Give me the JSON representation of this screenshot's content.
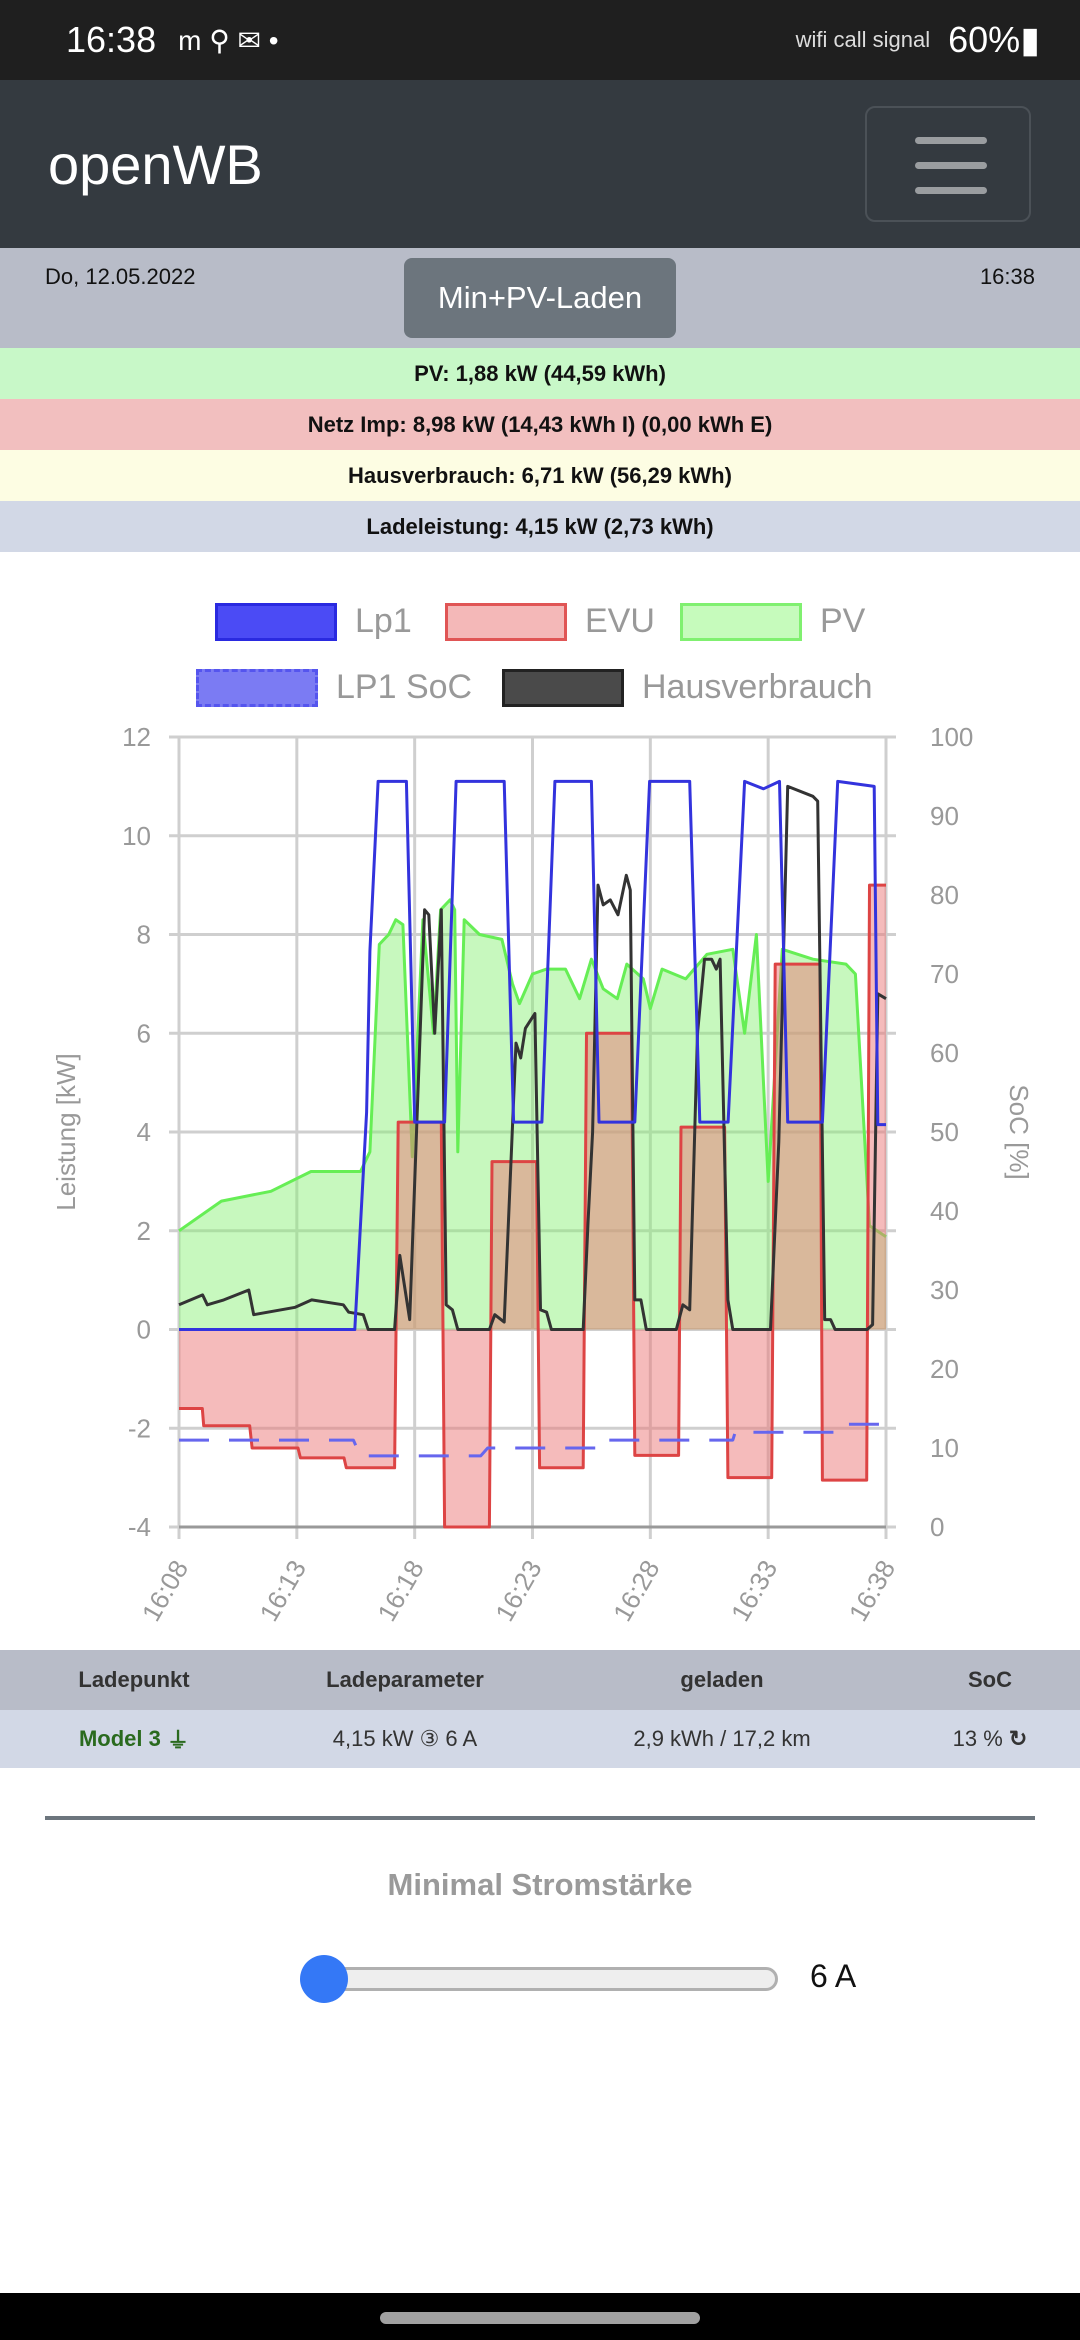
{
  "statusbar": {
    "time": "16:38",
    "left_icons": "m ⚲ ✉ •",
    "right_icons": "wifi call signal",
    "battery": "60%"
  },
  "navbar": {
    "brand": "openWB",
    "menu_icon": "hamburger-icon"
  },
  "daterow": {
    "date": "Do, 12.05.2022",
    "clock": "16:38",
    "mode_button": "Min+PV-Laden"
  },
  "info": {
    "pv": "PV: 1,88 kW (44,59 kWh)",
    "netz": "Netz Imp: 8,98 kW (14,43 kWh I) (0,00 kWh E)",
    "haus": "Hausverbrauch: 6,71 kW (56,29 kWh)",
    "lade": "Ladeleistung: 4,15 kW (2,73 kWh)"
  },
  "colors": {
    "pv_bg": "#c8f8c8",
    "netz_bg": "#f2bfbf",
    "haus_bg": "#fdfde3",
    "lade_bg": "#d2d8e6",
    "accent": "#3478f6"
  },
  "chart_data": {
    "type": "line",
    "legend": [
      "Lp1",
      "EVU",
      "PV",
      "LP1 SoC",
      "Hausverbrauch"
    ],
    "legend_position": "top",
    "ylabel": "Leistung [kW]",
    "y2label": "SoC [%]",
    "ylim": [
      -4,
      12
    ],
    "y2lim": [
      0,
      100
    ],
    "yticks": [
      "12",
      "10",
      "8",
      "6",
      "4",
      "2",
      "0",
      "-2",
      "-4"
    ],
    "y2ticks": [
      "100",
      "90",
      "80",
      "70",
      "60",
      "50",
      "40",
      "30",
      "20",
      "10",
      "0"
    ],
    "xticks": [
      "16:08",
      "16:13",
      "16:18",
      "16:23",
      "16:28",
      "16:33",
      "16:38"
    ],
    "x_unit": "minutes since 16:08",
    "xlim": [
      0,
      30
    ],
    "grid": true,
    "series": [
      {
        "name": "PV",
        "color": "#66ee55",
        "fill": "rgba(130,240,110,0.45)",
        "values": [
          [
            0,
            2.0
          ],
          [
            1.8,
            2.6
          ],
          [
            3.9,
            2.8
          ],
          [
            5.6,
            3.2
          ],
          [
            7.7,
            3.2
          ],
          [
            8.1,
            3.6
          ],
          [
            8.5,
            7.8
          ],
          [
            8.9,
            8.0
          ],
          [
            9.2,
            8.3
          ],
          [
            9.5,
            8.2
          ],
          [
            9.9,
            3.5
          ],
          [
            10.35,
            8.3
          ],
          [
            10.8,
            6.0
          ],
          [
            11.1,
            8.5
          ],
          [
            11.5,
            8.7
          ],
          [
            11.7,
            8.5
          ],
          [
            11.83,
            3.6
          ],
          [
            12.1,
            8.3
          ],
          [
            12.75,
            8.0
          ],
          [
            13.7,
            7.9
          ],
          [
            14.15,
            7.0
          ],
          [
            14.45,
            6.6
          ],
          [
            15.0,
            7.2
          ],
          [
            15.6,
            7.3
          ],
          [
            16.4,
            7.3
          ],
          [
            17.0,
            6.7
          ],
          [
            17.5,
            7.5
          ],
          [
            18.0,
            6.9
          ],
          [
            18.6,
            6.7
          ],
          [
            19.0,
            7.4
          ],
          [
            19.7,
            7.1
          ],
          [
            20.0,
            6.5
          ],
          [
            20.5,
            7.3
          ],
          [
            21.5,
            7.1
          ],
          [
            22.4,
            7.6
          ],
          [
            23.5,
            7.7
          ],
          [
            24.0,
            6.0
          ],
          [
            24.5,
            8.0
          ],
          [
            25.0,
            3.0
          ],
          [
            25.6,
            7.7
          ],
          [
            26.9,
            7.5
          ],
          [
            28.3,
            7.4
          ],
          [
            28.7,
            7.2
          ],
          [
            29.3,
            2.1
          ],
          [
            30,
            1.88
          ]
        ]
      },
      {
        "name": "EVU",
        "color": "#dd4444",
        "fill": "rgba(235,120,120,0.5)",
        "values": [
          [
            0,
            -1.6
          ],
          [
            0.99,
            -1.6
          ],
          [
            1.05,
            -1.95
          ],
          [
            3.0,
            -1.95
          ],
          [
            3.1,
            -2.4
          ],
          [
            5.05,
            -2.4
          ],
          [
            5.15,
            -2.6
          ],
          [
            7.0,
            -2.6
          ],
          [
            7.1,
            -2.8
          ],
          [
            9.15,
            -2.8
          ],
          [
            9.3,
            4.2
          ],
          [
            11.13,
            4.2
          ],
          [
            11.27,
            -4.0
          ],
          [
            13.17,
            -4.0
          ],
          [
            13.28,
            3.4
          ],
          [
            15.17,
            3.4
          ],
          [
            15.3,
            -2.8
          ],
          [
            17.15,
            -2.8
          ],
          [
            17.29,
            6.0
          ],
          [
            19.2,
            6.0
          ],
          [
            19.34,
            -2.55
          ],
          [
            21.2,
            -2.55
          ],
          [
            21.3,
            4.1
          ],
          [
            23.15,
            4.1
          ],
          [
            23.29,
            -3.0
          ],
          [
            25.15,
            -3.0
          ],
          [
            25.3,
            7.4
          ],
          [
            27.2,
            7.4
          ],
          [
            27.3,
            -3.05
          ],
          [
            29.18,
            -3.05
          ],
          [
            29.3,
            9.0
          ],
          [
            30,
            9.0
          ]
        ]
      },
      {
        "name": "Hausverbrauch",
        "color": "#333333",
        "values": [
          [
            0,
            0.5
          ],
          [
            1.0,
            0.7
          ],
          [
            1.2,
            0.5
          ],
          [
            1.9,
            0.6
          ],
          [
            2.96,
            0.8
          ],
          [
            3.17,
            0.3
          ],
          [
            4.93,
            0.45
          ],
          [
            5.63,
            0.6
          ],
          [
            6.97,
            0.5
          ],
          [
            7.2,
            0.35
          ],
          [
            7.82,
            0.3
          ],
          [
            8.03,
            0
          ],
          [
            9.15,
            0
          ],
          [
            9.37,
            1.5
          ],
          [
            9.79,
            0.2
          ],
          [
            10.42,
            8.5
          ],
          [
            10.6,
            8.4
          ],
          [
            10.85,
            6.0
          ],
          [
            11.13,
            8.5
          ],
          [
            11.34,
            0.5
          ],
          [
            11.6,
            0.4
          ],
          [
            11.83,
            0
          ],
          [
            13.17,
            0
          ],
          [
            13.4,
            0.3
          ],
          [
            13.8,
            0.15
          ],
          [
            14.3,
            5.8
          ],
          [
            14.5,
            5.5
          ],
          [
            14.7,
            6.1
          ],
          [
            15.1,
            6.4
          ],
          [
            15.34,
            0.4
          ],
          [
            15.6,
            0.35
          ],
          [
            15.8,
            0
          ],
          [
            17.15,
            0
          ],
          [
            17.36,
            2.2
          ],
          [
            17.55,
            4.0
          ],
          [
            17.78,
            9.0
          ],
          [
            18.0,
            8.6
          ],
          [
            18.3,
            8.7
          ],
          [
            18.63,
            8.4
          ],
          [
            18.98,
            9.2
          ],
          [
            19.15,
            8.9
          ],
          [
            19.34,
            0.6
          ],
          [
            19.6,
            0.6
          ],
          [
            19.83,
            0
          ],
          [
            21.1,
            0
          ],
          [
            21.38,
            0.5
          ],
          [
            21.67,
            0.4
          ],
          [
            22.0,
            6.0
          ],
          [
            22.3,
            7.5
          ],
          [
            22.6,
            7.5
          ],
          [
            22.8,
            7.3
          ],
          [
            22.96,
            7.5
          ],
          [
            23.29,
            0.6
          ],
          [
            23.5,
            0
          ],
          [
            25.1,
            0
          ],
          [
            25.45,
            3.8
          ],
          [
            25.83,
            11.0
          ],
          [
            26.9,
            10.8
          ],
          [
            27.1,
            10.7
          ],
          [
            27.4,
            0.2
          ],
          [
            27.65,
            0.2
          ],
          [
            27.84,
            0
          ],
          [
            29.2,
            0
          ],
          [
            29.43,
            0.1
          ],
          [
            29.65,
            6.8
          ],
          [
            30,
            6.7
          ]
        ]
      },
      {
        "name": "Lp1",
        "color": "#3333dd",
        "values": [
          [
            0,
            0
          ],
          [
            7.46,
            0
          ],
          [
            7.96,
            4.4
          ],
          [
            8.1,
            7.66
          ],
          [
            8.45,
            11.1
          ],
          [
            9.65,
            11.1
          ],
          [
            10.0,
            4.2
          ],
          [
            11.27,
            4.2
          ],
          [
            11.76,
            11.1
          ],
          [
            13.8,
            11.1
          ],
          [
            14.2,
            4.2
          ],
          [
            15.4,
            4.2
          ],
          [
            15.95,
            11.1
          ],
          [
            17.5,
            11.1
          ],
          [
            17.82,
            4.2
          ],
          [
            19.34,
            4.2
          ],
          [
            19.97,
            11.1
          ],
          [
            21.67,
            11.1
          ],
          [
            22.1,
            4.2
          ],
          [
            23.3,
            4.2
          ],
          [
            24.0,
            11.1
          ],
          [
            24.8,
            10.95
          ],
          [
            25.48,
            11.1
          ],
          [
            25.83,
            4.2
          ],
          [
            27.3,
            4.2
          ],
          [
            27.95,
            11.1
          ],
          [
            29.5,
            11.0
          ],
          [
            29.65,
            4.15
          ],
          [
            30,
            4.15
          ]
        ]
      },
      {
        "name": "LP1 SoC",
        "color": "#6666ee",
        "axis": "right",
        "values": [
          [
            0,
            11
          ],
          [
            7.4,
            11
          ],
          [
            7.7,
            9
          ],
          [
            12.8,
            9
          ],
          [
            13.1,
            10
          ],
          [
            18.1,
            10
          ],
          [
            18.2,
            11
          ],
          [
            23.5,
            11
          ],
          [
            23.6,
            12
          ],
          [
            28.2,
            12
          ],
          [
            28.4,
            13
          ],
          [
            30,
            13
          ]
        ]
      }
    ]
  },
  "table": {
    "headers": [
      "Ladepunkt",
      "Ladeparameter",
      "geladen",
      "SoC"
    ],
    "row": {
      "name": "Model 3",
      "params": "4,15 kW ③ 6 A",
      "charged": "2,9 kWh / 17,2 km",
      "soc": "13 %"
    }
  },
  "slider": {
    "title": "Minimal Stromstärke",
    "value_label": "6 A",
    "value": 6,
    "min": 6,
    "max": 32
  }
}
